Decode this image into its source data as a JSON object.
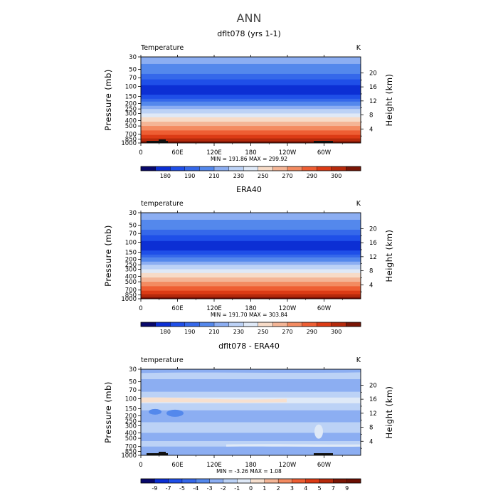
{
  "figure_title": "ANN",
  "chart_data": [
    {
      "type": "heatmap",
      "title": "dflt078 (yrs 1-1)",
      "variable_label": "Temperature",
      "units": "K",
      "ylabel_left": "Pressure (mb)",
      "ylabel_right": "Height (km)",
      "x_ticks": [
        "0",
        "60E",
        "120E",
        "180",
        "120W",
        "60W"
      ],
      "pressure_ticks": [
        "30",
        "50",
        "70",
        "100",
        "150",
        "200",
        "250",
        "300",
        "400",
        "500",
        "700",
        "850",
        "1000"
      ],
      "height_ticks": [
        "20",
        "16",
        "12",
        "8",
        "4"
      ],
      "min_max_text": "MIN = 191.86   MAX = 299.92",
      "colorbar_labels": [
        "180",
        "190",
        "210",
        "230",
        "250",
        "270",
        "290",
        "300"
      ],
      "y_axis_scale": "log"
    },
    {
      "type": "heatmap",
      "title": "ERA40",
      "variable_label": "temperature",
      "units": "K",
      "ylabel_left": "Pressure (mb)",
      "ylabel_right": "Height (km)",
      "x_ticks": [
        "0",
        "60E",
        "120E",
        "180",
        "120W",
        "60W"
      ],
      "pressure_ticks": [
        "30",
        "50",
        "70",
        "100",
        "150",
        "200",
        "250",
        "300",
        "400",
        "500",
        "700",
        "850",
        "1000"
      ],
      "height_ticks": [
        "20",
        "16",
        "12",
        "8",
        "4"
      ],
      "min_max_text": "MIN = 191.70   MAX = 303.84",
      "colorbar_labels": [
        "180",
        "190",
        "210",
        "230",
        "250",
        "270",
        "290",
        "300"
      ],
      "y_axis_scale": "log"
    },
    {
      "type": "heatmap",
      "title": "dflt078 - ERA40",
      "variable_label": "temperature",
      "units": "K",
      "ylabel_left": "Pressure (mb)",
      "ylabel_right": "Height (km)",
      "x_ticks": [
        "0",
        "60E",
        "120E",
        "180",
        "120W",
        "60W"
      ],
      "pressure_ticks": [
        "30",
        "50",
        "70",
        "100",
        "150",
        "200",
        "250",
        "300",
        "400",
        "500",
        "700",
        "850",
        "1000"
      ],
      "height_ticks": [
        "20",
        "16",
        "12",
        "8",
        "4"
      ],
      "min_max_text": "MIN =  -3.26   MAX =    1.08",
      "colorbar_labels": [
        "-9",
        "-7",
        "-5",
        "-4",
        "-3",
        "-2",
        "-1",
        "0",
        "1",
        "2",
        "3",
        "4",
        "5",
        "7",
        "9"
      ],
      "y_axis_scale": "log"
    }
  ],
  "colors": {
    "abs_scale": [
      "#08086b",
      "#0c2fd4",
      "#1f4fe8",
      "#3568ea",
      "#5488ec",
      "#8caef2",
      "#bcd2f6",
      "#dfe9f7",
      "#f7dbc7",
      "#f4b596",
      "#f38b61",
      "#ee5e33",
      "#dc3b15",
      "#b52a0c",
      "#7a1505"
    ],
    "anom_scale": [
      "#08086b",
      "#0c2fd4",
      "#1f4fe8",
      "#3568ea",
      "#5488ec",
      "#8caef2",
      "#bcd2f6",
      "#dfe9f7",
      "#f7e0cf",
      "#f4b596",
      "#f38b61",
      "#ee5e33",
      "#dc3b15",
      "#b52a0c",
      "#7a1505",
      "#6b0f02"
    ],
    "topography": "#111111"
  }
}
